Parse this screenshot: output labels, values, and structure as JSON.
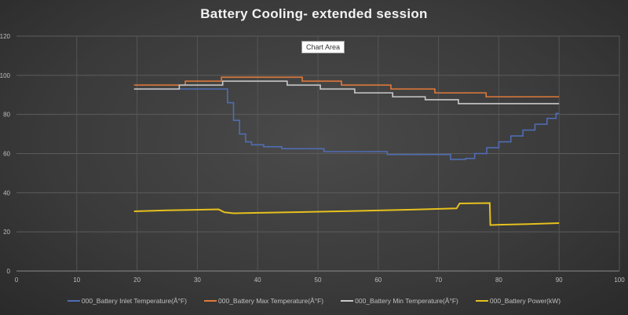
{
  "chart_data": {
    "type": "line",
    "title": "Battery Cooling- extended session",
    "tooltip": "Chart Area",
    "xlabel": "",
    "ylabel": "",
    "xlim": [
      0,
      100
    ],
    "ylim": [
      0,
      120
    ],
    "xticks": [
      0,
      10,
      20,
      30,
      40,
      50,
      60,
      70,
      80,
      90,
      100
    ],
    "yticks": [
      0,
      20,
      40,
      60,
      80,
      100,
      120
    ],
    "grid": true,
    "legend": "bottom",
    "series": [
      {
        "name": "000_Battery Inlet Temperature(Â°F)",
        "color": "#4f6db3",
        "step": true,
        "points": [
          [
            19.5,
            93
          ],
          [
            34,
            93
          ],
          [
            35,
            86
          ],
          [
            36,
            77
          ],
          [
            37,
            70
          ],
          [
            38,
            66
          ],
          [
            39,
            64.5
          ],
          [
            41,
            63.5
          ],
          [
            44,
            62.5
          ],
          [
            51,
            61
          ],
          [
            61.5,
            59.5
          ],
          [
            72,
            57
          ],
          [
            74.5,
            57.5
          ],
          [
            76,
            60
          ],
          [
            78,
            63
          ],
          [
            80,
            66
          ],
          [
            82,
            69
          ],
          [
            84,
            72
          ],
          [
            86,
            75
          ],
          [
            88,
            78
          ],
          [
            89.5,
            80.5
          ],
          [
            90,
            80.5
          ]
        ]
      },
      {
        "name": "000_Battery Max Temperature(Â°F)",
        "color": "#e0793a",
        "step": true,
        "points": [
          [
            19.5,
            95
          ],
          [
            28,
            97
          ],
          [
            34,
            99
          ],
          [
            47.4,
            97
          ],
          [
            53.9,
            95
          ],
          [
            62.1,
            93
          ],
          [
            69.4,
            91
          ],
          [
            77.9,
            89
          ],
          [
            90,
            89
          ]
        ]
      },
      {
        "name": "000_Battery Min Temperature(Â°F)",
        "color": "#c9c9c9",
        "step": true,
        "points": [
          [
            19.5,
            93
          ],
          [
            27,
            95
          ],
          [
            34.2,
            97
          ],
          [
            44.9,
            95
          ],
          [
            50.4,
            93
          ],
          [
            56.1,
            91
          ],
          [
            62.4,
            89
          ],
          [
            67.8,
            87.5
          ],
          [
            73.3,
            85.5
          ],
          [
            90,
            85.5
          ]
        ]
      },
      {
        "name": "000_Battery Power(kW)",
        "color": "#e6c01e",
        "step": false,
        "points": [
          [
            19.5,
            30.5
          ],
          [
            25,
            31
          ],
          [
            33.5,
            31.5
          ],
          [
            34.5,
            30
          ],
          [
            36,
            29.5
          ],
          [
            45,
            30
          ],
          [
            55,
            30.6
          ],
          [
            65,
            31.3
          ],
          [
            73,
            32
          ],
          [
            73.5,
            34.5
          ],
          [
            78.5,
            34.7
          ],
          [
            78.6,
            23.5
          ],
          [
            85,
            24
          ],
          [
            90,
            24.5
          ]
        ]
      }
    ]
  }
}
